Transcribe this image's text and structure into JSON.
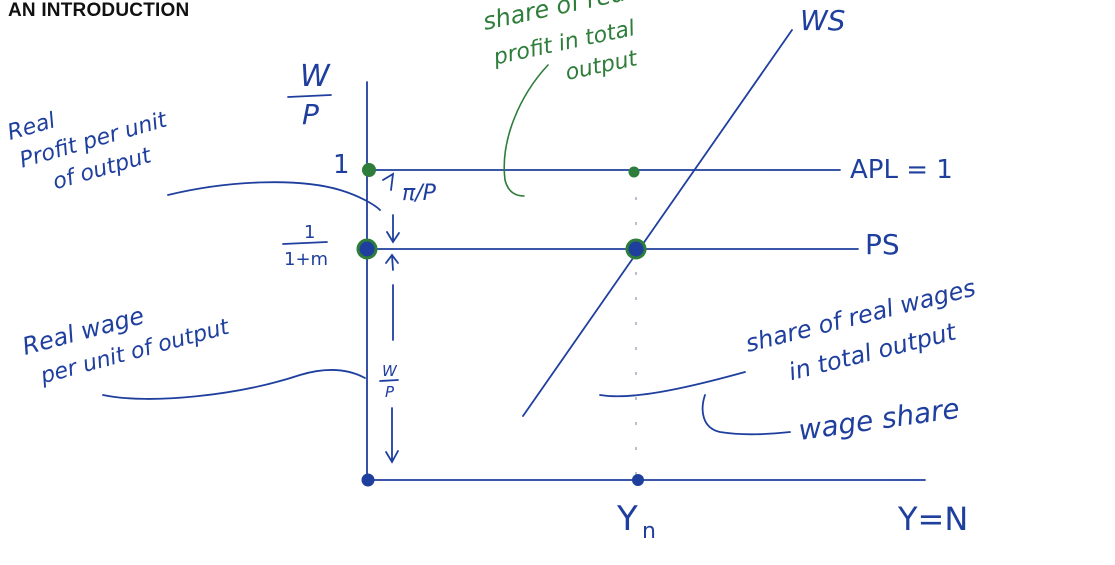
{
  "page_title": "AN INTRODUCTION",
  "axis": {
    "y_top_w": "W",
    "y_top_p": "P",
    "x_axis_label": "Y=N",
    "natural_output_label": "Y",
    "natural_output_sub": "n"
  },
  "levels": {
    "apl_tick": "1",
    "ps_tick_num": "1",
    "ps_tick_den": "1+m"
  },
  "curves": {
    "ws": "WS",
    "apl": "APL = 1",
    "ps": "PS"
  },
  "segments": {
    "profit_per_unit": "π/P",
    "wage_per_unit_num": "W",
    "wage_per_unit_den": "P"
  },
  "annotations": {
    "real_profit_line1": "Real",
    "real_profit_line2": "Profit per unit",
    "real_profit_line3": "of output",
    "real_wage_line1": "Real wage",
    "real_wage_line2": "per unit of output",
    "share_profit_line1": "share of real",
    "share_profit_line2": "profit in total",
    "share_profit_line3": "output",
    "share_wages_line1": "share of real wages",
    "share_wages_line2": "in total output",
    "wage_share": "wage share"
  },
  "colors": {
    "ink_blue": "#1f3f9e",
    "ink_green": "#2e7d3a"
  }
}
